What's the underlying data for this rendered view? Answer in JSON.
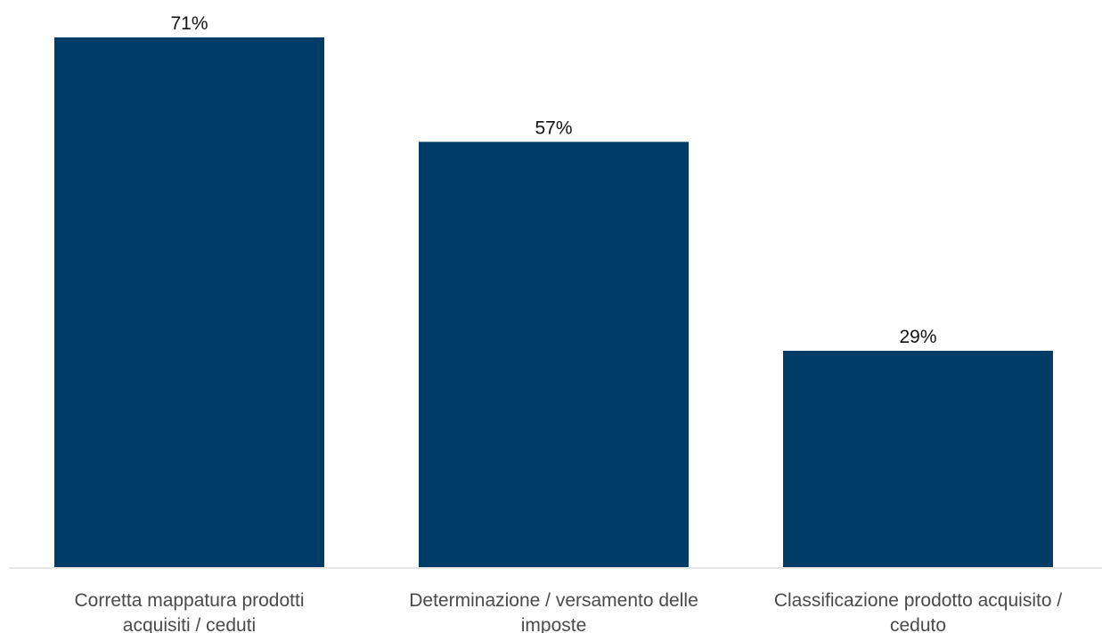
{
  "chart_data": {
    "type": "bar",
    "categories": [
      [
        "Corretta mappatura prodotti",
        "acquisiti / ceduti"
      ],
      [
        "Determinazione / versamento delle",
        "imposte"
      ],
      [
        "Classificazione prodotto acquisito /",
        "ceduto"
      ]
    ],
    "values": [
      71,
      57,
      29
    ],
    "value_labels": [
      "71%",
      "57%",
      "29%"
    ],
    "unit": "%",
    "bar_color": "#003d66",
    "axis_color": "#e6e6e6",
    "title": "",
    "xlabel": "",
    "ylabel": "",
    "ylim": [
      0,
      71
    ],
    "grid": false,
    "legend": "none"
  }
}
